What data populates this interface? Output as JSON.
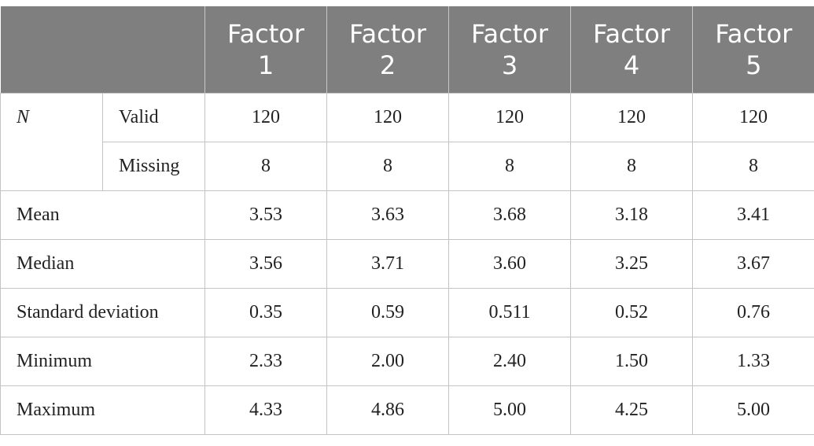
{
  "table": {
    "columns": [
      "Factor 1",
      "Factor 2",
      "Factor 3",
      "Factor 4",
      "Factor 5"
    ],
    "n_group": {
      "label": "N",
      "rows": [
        {
          "label": "Valid",
          "values": [
            "120",
            "120",
            "120",
            "120",
            "120"
          ]
        },
        {
          "label": "Missing",
          "values": [
            "8",
            "8",
            "8",
            "8",
            "8"
          ]
        }
      ]
    },
    "rows": [
      {
        "label": "Mean",
        "values": [
          "3.53",
          "3.63",
          "3.68",
          "3.18",
          "3.41"
        ]
      },
      {
        "label": "Median",
        "values": [
          "3.56",
          "3.71",
          "3.60",
          "3.25",
          "3.67"
        ]
      },
      {
        "label": "Standard deviation",
        "values": [
          "0.35",
          "0.59",
          "0.511",
          "0.52",
          "0.76"
        ]
      },
      {
        "label": "Minimum",
        "values": [
          "2.33",
          "2.00",
          "2.40",
          "1.50",
          "1.33"
        ]
      },
      {
        "label": "Maximum",
        "values": [
          "4.33",
          "4.86",
          "5.00",
          "4.25",
          "5.00"
        ]
      }
    ]
  }
}
